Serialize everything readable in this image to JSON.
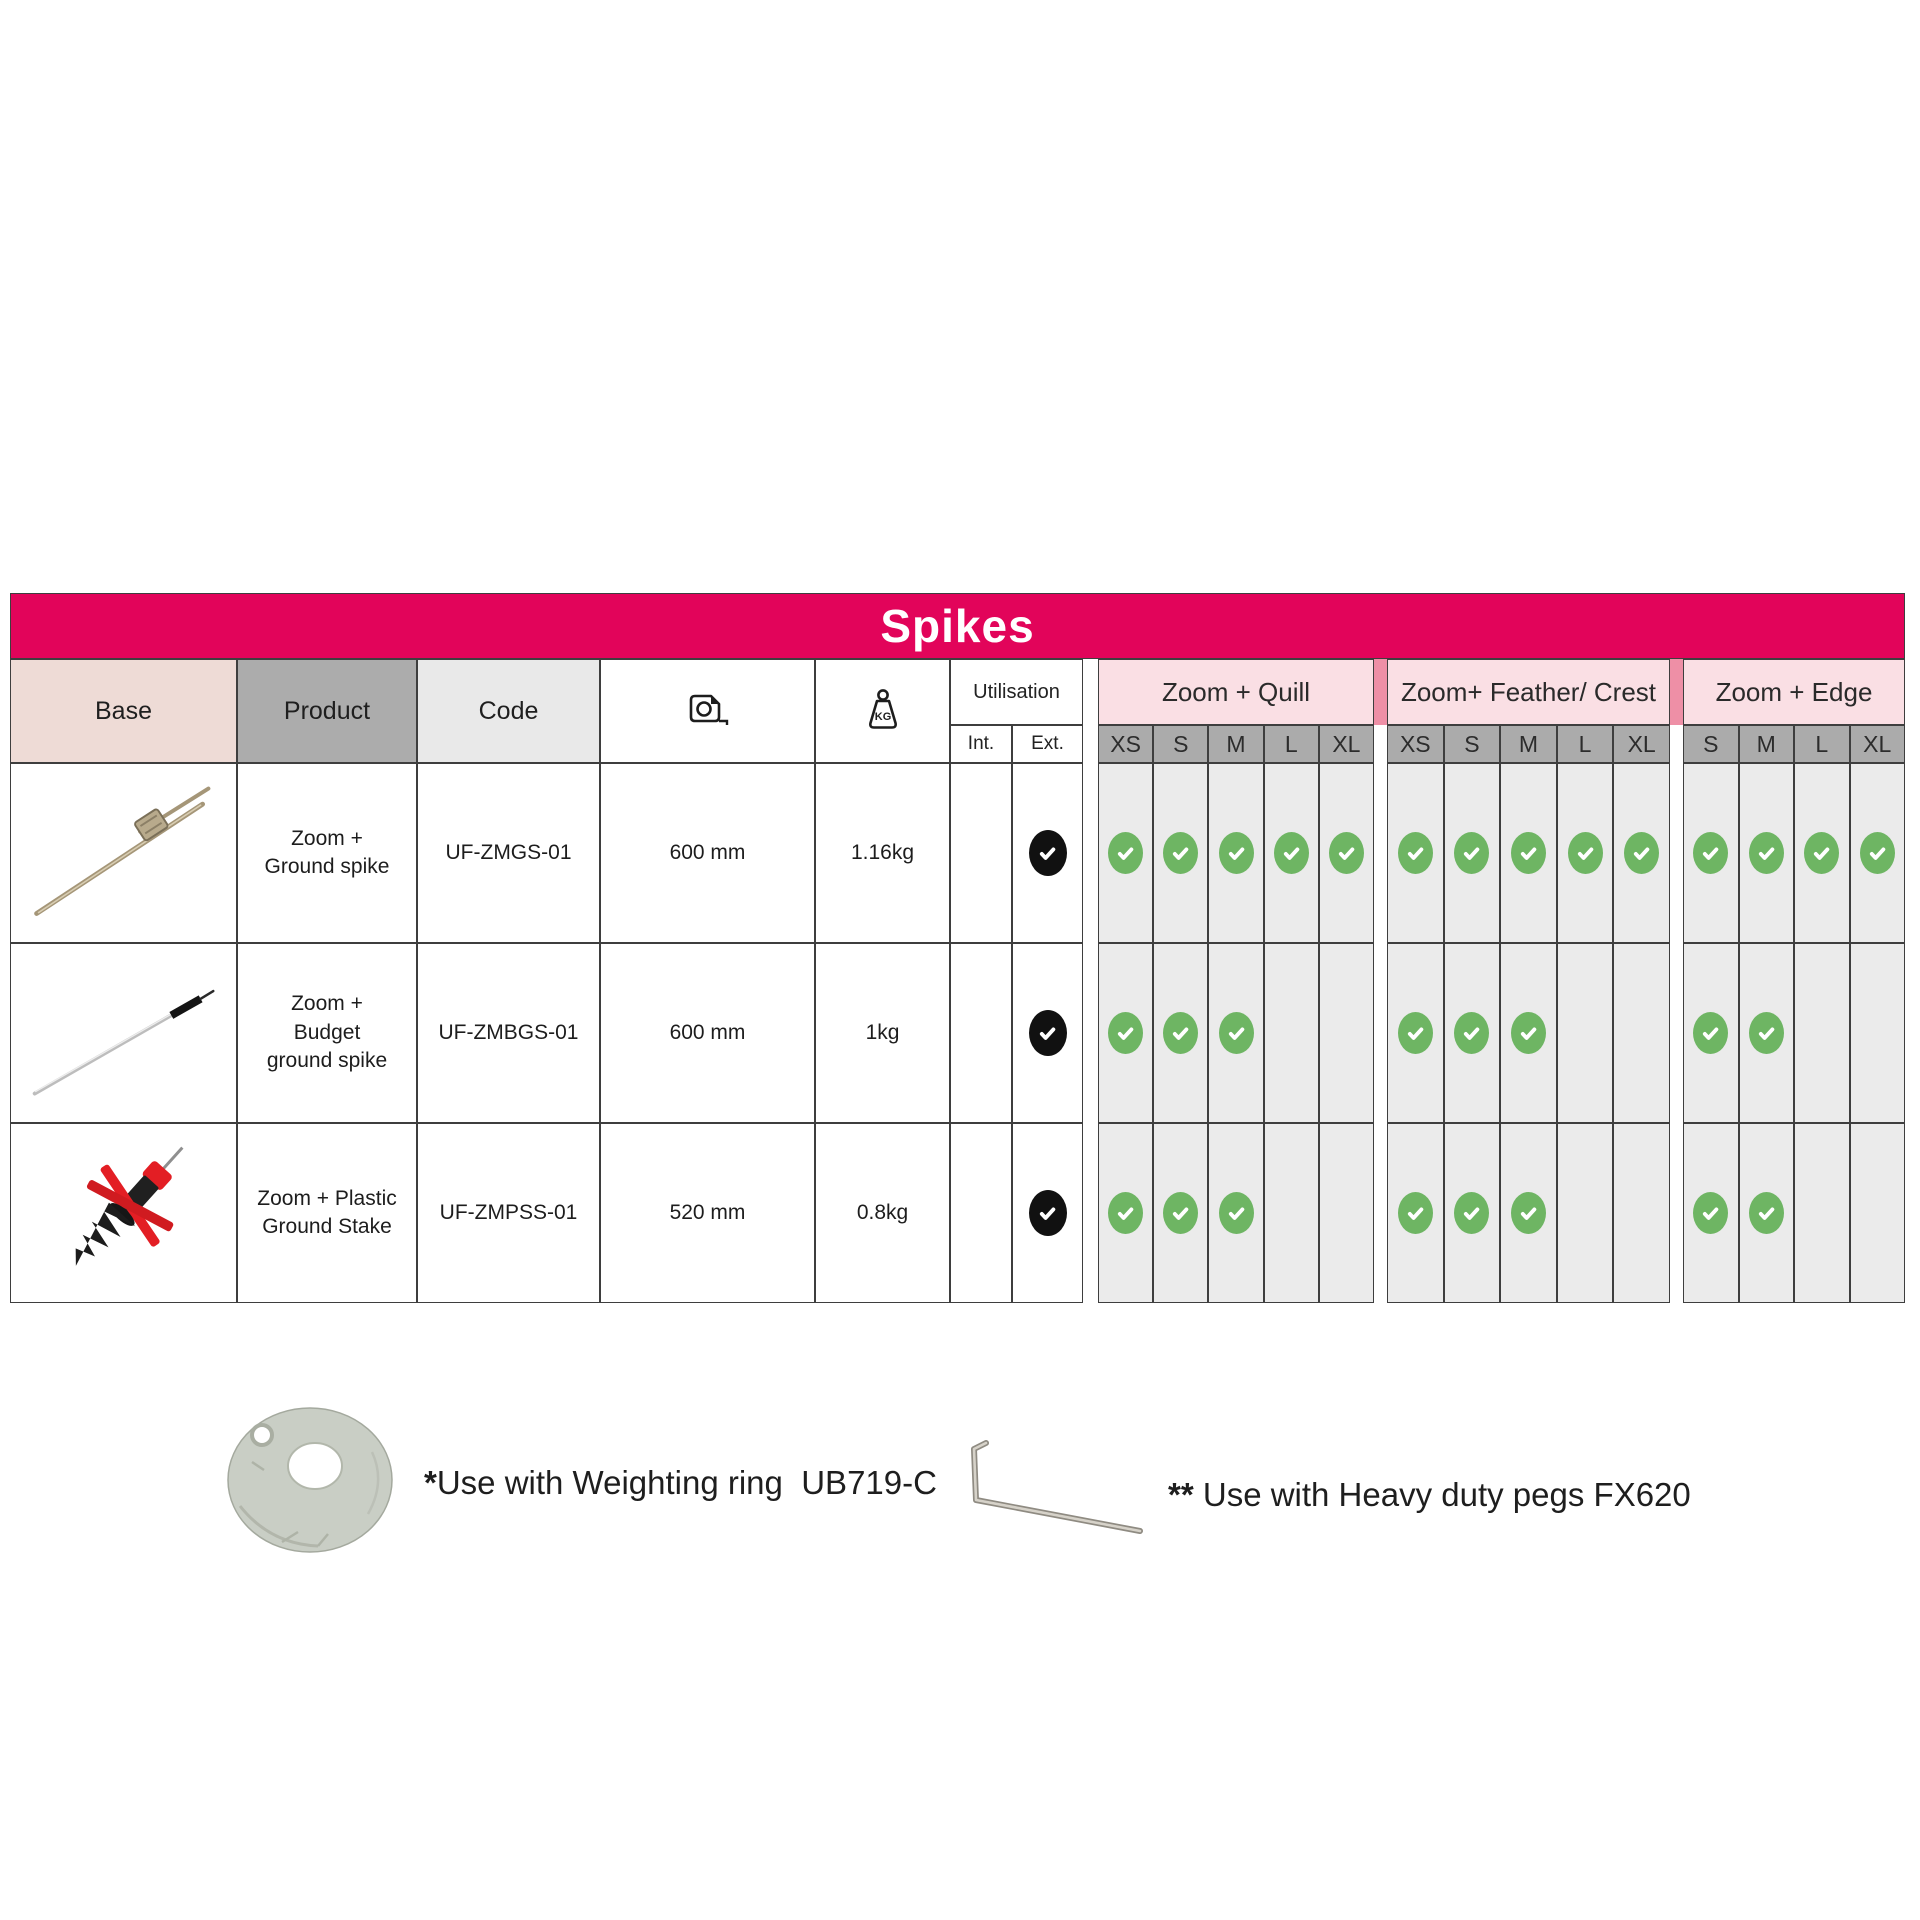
{
  "title": "Spikes",
  "header": {
    "base": "Base",
    "product": "Product",
    "code": "Code",
    "length_icon": "tape-measure-icon",
    "weight_icon": "kg-weight-icon",
    "utilisation": "Utilisation",
    "int": "Int.",
    "ext": "Ext."
  },
  "groups": [
    {
      "label": "Zoom + Quill",
      "sizes": [
        "XS",
        "S",
        "M",
        "L",
        "XL"
      ]
    },
    {
      "label": "Zoom+ Feather/ Crest",
      "sizes": [
        "XS",
        "S",
        "M",
        "L",
        "XL"
      ]
    },
    {
      "label": "Zoom + Edge",
      "sizes": [
        "S",
        "M",
        "L",
        "XL"
      ]
    }
  ],
  "rows": [
    {
      "base_image": "ground-spike",
      "product": "Zoom +\nGround spike",
      "code": "UF-ZMGS-01",
      "length": "600 mm",
      "weight": "1.16kg",
      "int": false,
      "ext": true,
      "checks": [
        [
          1,
          1,
          1,
          1,
          1
        ],
        [
          1,
          1,
          1,
          1,
          1
        ],
        [
          1,
          1,
          1,
          1
        ]
      ]
    },
    {
      "base_image": "budget-ground-spike",
      "product": "Zoom +\nBudget\nground spike",
      "code": "UF-ZMBGS-01",
      "length": "600 mm",
      "weight": "1kg",
      "int": false,
      "ext": true,
      "checks": [
        [
          1,
          1,
          1,
          0,
          0
        ],
        [
          1,
          1,
          1,
          0,
          0
        ],
        [
          1,
          1,
          0,
          0
        ]
      ]
    },
    {
      "base_image": "plastic-ground-stake",
      "product": "Zoom + Plastic\nGround Stake",
      "code": "UF-ZMPSS-01",
      "length": "520 mm",
      "weight": "0.8kg",
      "int": false,
      "ext": true,
      "checks": [
        [
          1,
          1,
          1,
          0,
          0
        ],
        [
          1,
          1,
          1,
          0,
          0
        ],
        [
          1,
          1,
          0,
          0
        ]
      ]
    }
  ],
  "footnotes": [
    {
      "marker": "*",
      "text": "Use with Weighting ring  UB719-C",
      "image": "weighting-ring"
    },
    {
      "marker": "**",
      "text": " Use with Heavy duty pegs FX620",
      "image": "heavy-duty-peg"
    }
  ],
  "colors": {
    "banner": "#E2045A",
    "groupHeaderBg": "#FADFE4",
    "separator": "#EE8FA6",
    "baseHeaderBg": "#EEDBD6",
    "productHeaderBg": "#ACACAC",
    "codeHeaderBg": "#E9E9E9",
    "sizeHeaderBg": "#ABABAB",
    "matrixCellBg": "#EBEBEB",
    "checkGreen": "#6EB563",
    "checkBlack": "#111111"
  }
}
